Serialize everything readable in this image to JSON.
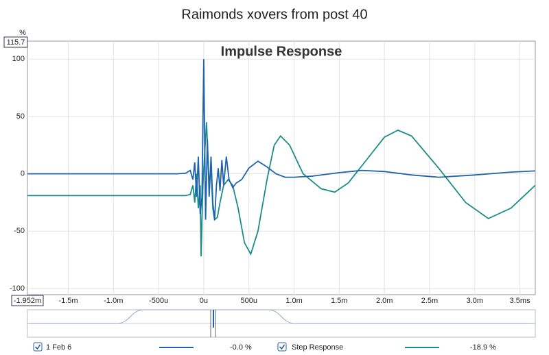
{
  "chart_data": {
    "type": "line",
    "title": "Raimonds xovers from post 40",
    "annotation": "Impulse Response",
    "y_unit": "%",
    "ylim": [
      -105.4,
      115.7
    ],
    "yticks": [
      100,
      50,
      0,
      -50,
      -100
    ],
    "xlim": [
      -1.952,
      3.67
    ],
    "x_start_label": "-1.952m",
    "xticks": [
      {
        "value": -1.5,
        "label": "-1.5m"
      },
      {
        "value": -1.0,
        "label": "-1.0m"
      },
      {
        "value": -0.5,
        "label": "-500u"
      },
      {
        "value": 0,
        "label": "0u"
      },
      {
        "value": 0.5,
        "label": "500u"
      },
      {
        "value": 1.0,
        "label": "1.0m"
      },
      {
        "value": 1.5,
        "label": "1.5m"
      },
      {
        "value": 2.0,
        "label": "2.0m"
      },
      {
        "value": 2.5,
        "label": "2.5m"
      },
      {
        "value": 3.0,
        "label": "3.0m"
      },
      {
        "value": 3.5,
        "label": "3.5ms"
      }
    ],
    "grid": true,
    "series": [
      {
        "name": "1 Feb 6",
        "color": "#1f63ad",
        "readout": "-0.0 %",
        "x": [
          -1.952,
          -0.3,
          -0.2,
          -0.15,
          -0.12,
          -0.1,
          -0.08,
          -0.06,
          -0.04,
          -0.02,
          0,
          0.02,
          0.04,
          0.06,
          0.08,
          0.1,
          0.12,
          0.14,
          0.16,
          0.18,
          0.2,
          0.22,
          0.25,
          0.28,
          0.32,
          0.36,
          0.42,
          0.5,
          0.6,
          0.7,
          0.8,
          0.9,
          1.0,
          1.2,
          1.5,
          1.75,
          2.0,
          2.3,
          2.6,
          3.0,
          3.4,
          3.67
        ],
        "values": [
          0,
          0,
          0.5,
          3,
          -5,
          10,
          -20,
          15,
          -35,
          -20,
          100,
          -40,
          30,
          -20,
          15,
          -25,
          -40,
          -10,
          5,
          -15,
          12,
          -10,
          15,
          -5,
          -12,
          -8,
          -5,
          5,
          11,
          6,
          0,
          -3,
          -3,
          -2,
          1,
          3,
          2,
          -1,
          -3,
          -1,
          1.5,
          2.5
        ]
      },
      {
        "name": "Step Response",
        "color": "#198c88",
        "readout": "-18.9 %",
        "x": [
          -1.952,
          -0.2,
          -0.15,
          -0.12,
          -0.1,
          -0.08,
          -0.06,
          -0.04,
          -0.03,
          -0.01,
          0.03,
          0.06,
          0.08,
          0.1,
          0.12,
          0.15,
          0.18,
          0.22,
          0.27,
          0.32,
          0.38,
          0.45,
          0.52,
          0.6,
          0.7,
          0.78,
          0.85,
          0.95,
          1.1,
          1.3,
          1.45,
          1.6,
          1.8,
          2.0,
          2.15,
          2.3,
          2.6,
          2.9,
          3.15,
          3.4,
          3.67
        ],
        "values": [
          -19,
          -19,
          -18,
          -10,
          -25,
          0,
          -30,
          -10,
          -72,
          -10,
          45,
          -10,
          5,
          -30,
          -40,
          -38,
          -25,
          -10,
          -5,
          -10,
          -30,
          -60,
          -70,
          -50,
          -5,
          25,
          33,
          25,
          0,
          -13,
          -16,
          -8,
          12,
          32,
          38,
          33,
          5,
          -25,
          -39,
          -30,
          -10
        ]
      }
    ]
  }
}
